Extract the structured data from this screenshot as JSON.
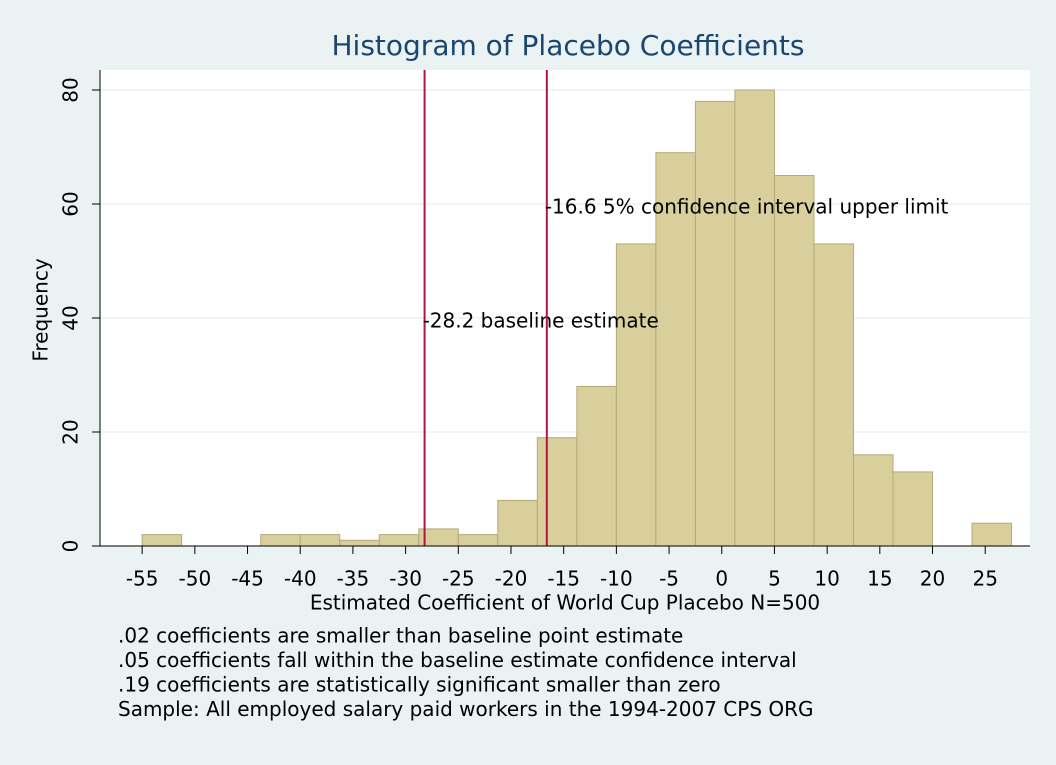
{
  "chart_data": {
    "type": "histogram",
    "title": "Histogram of Placebo Coefficients",
    "x_label": "Estimated Coefficient of World Cup Placebo N=500",
    "y_label": "Frequency",
    "bins": [
      -55,
      -51.25,
      -47.5,
      -43.75,
      -40,
      -36.25,
      -32.5,
      -28.75,
      -25,
      -21.25,
      -17.5,
      -13.75,
      -10,
      -6.25,
      -2.5,
      1.25,
      5,
      8.75,
      12.5,
      16.25,
      20,
      23.75,
      27.5
    ],
    "counts": [
      2,
      0,
      0,
      2,
      2,
      1,
      2,
      3,
      2,
      8,
      19,
      28,
      53,
      69,
      78,
      80,
      65,
      53,
      16,
      13,
      0,
      4
    ],
    "color": "#d8cf9c",
    "xlim": [
      -59,
      29.25
    ],
    "ylim": [
      0,
      82
    ],
    "xticks": [
      -55,
      -50,
      -45,
      -40,
      -35,
      -30,
      -25,
      -20,
      -15,
      -10,
      -5,
      0,
      5,
      10,
      15,
      20,
      25
    ],
    "yticks": [
      0,
      20,
      40,
      60,
      80
    ],
    "grid": true,
    "vlines": [
      {
        "value": -28.2,
        "label": "-28.2 baseline estimate",
        "color": "#b0163f"
      },
      {
        "value": -16.6,
        "label": "-16.6 5% confidence interval upper limit",
        "color": "#b0163f"
      }
    ],
    "notes": [
      ".02 coefficients are smaller than baseline point estimate",
      ".05 coefficients fall within the baseline estimate confidence interval",
      ".19 coefficients are statistically significant smaller than zero",
      "Sample: All employed salary paid workers in the 1994-2007 CPS ORG"
    ]
  }
}
